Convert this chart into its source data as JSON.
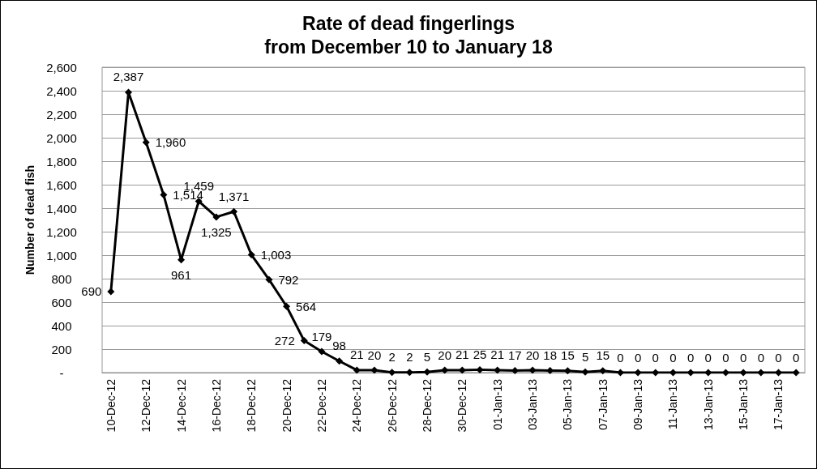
{
  "chart_data": {
    "type": "line",
    "title": "Rate of dead fingerlings\nfrom December 10 to January 18",
    "ylabel": "Number of dead fish",
    "categories": [
      "10-Dec-12",
      null,
      "12-Dec-12",
      null,
      "14-Dec-12",
      null,
      "16-Dec-12",
      null,
      "18-Dec-12",
      null,
      "20-Dec-12",
      null,
      "22-Dec-12",
      null,
      "24-Dec-12",
      null,
      "26-Dec-12",
      null,
      "28-Dec-12",
      null,
      "30-Dec-12",
      null,
      "01-Jan-13",
      null,
      "03-Jan-13",
      null,
      "05-Jan-13",
      null,
      "07-Jan-13",
      null,
      "09-Jan-13",
      null,
      "11-Jan-13",
      null,
      "13-Jan-13",
      null,
      "15-Jan-13",
      null,
      "17-Jan-13",
      null
    ],
    "series": [
      {
        "color": "#000000",
        "values": [
          690,
          2387,
          1960,
          1514,
          961,
          1459,
          1325,
          1371,
          1003,
          792,
          564,
          272,
          179,
          98,
          21,
          20,
          2,
          2,
          5,
          20,
          21,
          25,
          21,
          17,
          20,
          18,
          15,
          5,
          15,
          0,
          0,
          0,
          0,
          0,
          0,
          0,
          0,
          0,
          0,
          0
        ],
        "value_labels": [
          "690",
          "2,387",
          "1,960",
          "1,514",
          "961",
          "1,459",
          "1,325",
          "1,371",
          "1,003",
          "792",
          "564",
          "272",
          "179",
          "98",
          "21",
          "20",
          "2",
          "2",
          "5",
          "20",
          "21",
          "25",
          "21",
          "17",
          "20",
          "18",
          "15",
          "5",
          "15",
          "0",
          "0",
          "0",
          "0",
          "0",
          "0",
          "0",
          "0",
          "0",
          "0",
          "0"
        ]
      }
    ],
    "ylim": [
      0,
      2600
    ],
    "yticks": [
      {
        "value": 0,
        "label": "-"
      },
      {
        "value": 200,
        "label": "200"
      },
      {
        "value": 400,
        "label": "400"
      },
      {
        "value": 600,
        "label": "600"
      },
      {
        "value": 800,
        "label": "800"
      },
      {
        "value": 1000,
        "label": "1,000"
      },
      {
        "value": 1200,
        "label": "1,200"
      },
      {
        "value": 1400,
        "label": "1,400"
      },
      {
        "value": 1600,
        "label": "1,600"
      },
      {
        "value": 1800,
        "label": "1,800"
      },
      {
        "value": 2000,
        "label": "2,000"
      },
      {
        "value": 2200,
        "label": "2,200"
      },
      {
        "value": 2400,
        "label": "2,400"
      },
      {
        "value": 2600,
        "label": "2,600"
      }
    ],
    "grid": "y",
    "marker": "diamond",
    "line_style": "solid"
  }
}
